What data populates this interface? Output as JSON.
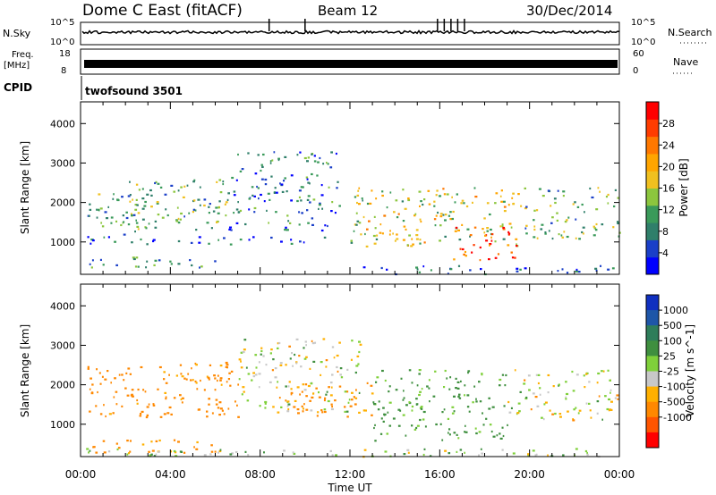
{
  "header": {
    "radar": "Dome C East (fitACF)",
    "beam": "Beam 12",
    "date": "30/Dec/2014"
  },
  "param_panels": {
    "nsky_label": "N.Sky",
    "nsearch_label": "N.Search",
    "noise_ticks": [
      "10^5",
      "10^0"
    ],
    "freq_label": "Freq.",
    "freq_unit": "[MHz]",
    "freq_ticks": [
      "18",
      "8"
    ],
    "nave_label": "Nave",
    "nave_ticks": [
      "60",
      "0"
    ],
    "cpid_label": "CPID",
    "cpid_value": "twofsound 3501"
  },
  "colors": {
    "power_scale": [
      "#0000ff",
      "#1a3fc8",
      "#2f7f6a",
      "#3a9a5a",
      "#8cc63e",
      "#f0c020",
      "#ffa500",
      "#ff7800",
      "#ff3c00",
      "#ff0000"
    ],
    "velocity_scale": [
      "#1030c0",
      "#1e56a8",
      "#2e7d5a",
      "#3f8f3f",
      "#7fd03a",
      "#c8c8c8",
      "#ffb000",
      "#ff8800",
      "#ff5500",
      "#ff0000"
    ]
  },
  "chart_data": [
    {
      "type": "heatmap",
      "name": "power",
      "xlabel": "Time UT",
      "ylabel": "Slant Range [km]",
      "x_ticks": [
        "00:00",
        "04:00",
        "08:00",
        "12:00",
        "16:00",
        "20:00",
        "00:00"
      ],
      "x_range_hours": [
        0,
        24
      ],
      "y_ticks": [
        1000,
        2000,
        3000,
        4000
      ],
      "y_range_km": [
        180,
        4550
      ],
      "colorbar_label": "Power [dB]",
      "colorbar_ticks": [
        4,
        8,
        12,
        16,
        20,
        24,
        28
      ],
      "colorbar_range": [
        0,
        32
      ],
      "echo_regions": [
        {
          "t0": 0.1,
          "t1": 6.2,
          "r0": 350,
          "r1": 650,
          "value": 10
        },
        {
          "t0": 0.2,
          "t1": 11.0,
          "r0": 950,
          "r1": 1150,
          "value": 6
        },
        {
          "t0": 0.3,
          "t1": 2.5,
          "r0": 1200,
          "r1": 2300,
          "value": 10
        },
        {
          "t0": 2.0,
          "t1": 6.5,
          "r0": 1300,
          "r1": 2600,
          "value": 12
        },
        {
          "t0": 6.5,
          "t1": 11.5,
          "r0": 1300,
          "r1": 3300,
          "value": 8
        },
        {
          "t0": 12.0,
          "t1": 19.5,
          "r0": 900,
          "r1": 2400,
          "value": 16
        },
        {
          "t0": 16.5,
          "t1": 19.5,
          "r0": 550,
          "r1": 1400,
          "value": 26
        },
        {
          "t0": 19.5,
          "t1": 24.0,
          "r0": 1100,
          "r1": 2400,
          "value": 12
        },
        {
          "t0": 12.0,
          "t1": 24.0,
          "r0": 200,
          "r1": 420,
          "value": 6
        }
      ]
    },
    {
      "type": "heatmap",
      "name": "velocity",
      "xlabel": "Time UT",
      "ylabel": "Slant Range [km]",
      "x_ticks": [
        "00:00",
        "04:00",
        "08:00",
        "12:00",
        "16:00",
        "20:00",
        "00:00"
      ],
      "x_range_hours": [
        0,
        24
      ],
      "y_ticks": [
        1000,
        2000,
        3000,
        4000
      ],
      "y_range_km": [
        180,
        4550
      ],
      "colorbar_label": "Velocity [m s^-1]",
      "colorbar_ticks": [
        1000,
        500,
        100,
        25,
        -25,
        -100,
        -500,
        -1000
      ],
      "echo_regions": [
        {
          "t0": 0.2,
          "t1": 6.2,
          "r0": 300,
          "r1": 650,
          "value": -150
        },
        {
          "t0": 0.3,
          "t1": 7.0,
          "r0": 1200,
          "r1": 2600,
          "value": -200
        },
        {
          "t0": 7.0,
          "t1": 12.5,
          "r0": 1300,
          "r1": 3200,
          "value": 0
        },
        {
          "t0": 9.0,
          "t1": 13.0,
          "r0": 1200,
          "r1": 2100,
          "value": -150
        },
        {
          "t0": 13.0,
          "t1": 19.0,
          "r0": 600,
          "r1": 2400,
          "value": 150
        },
        {
          "t0": 19.0,
          "t1": 24.0,
          "r0": 1100,
          "r1": 2400,
          "value": 0
        },
        {
          "t0": 0.0,
          "t1": 24.0,
          "r0": 200,
          "r1": 400,
          "value": 60
        }
      ]
    }
  ]
}
